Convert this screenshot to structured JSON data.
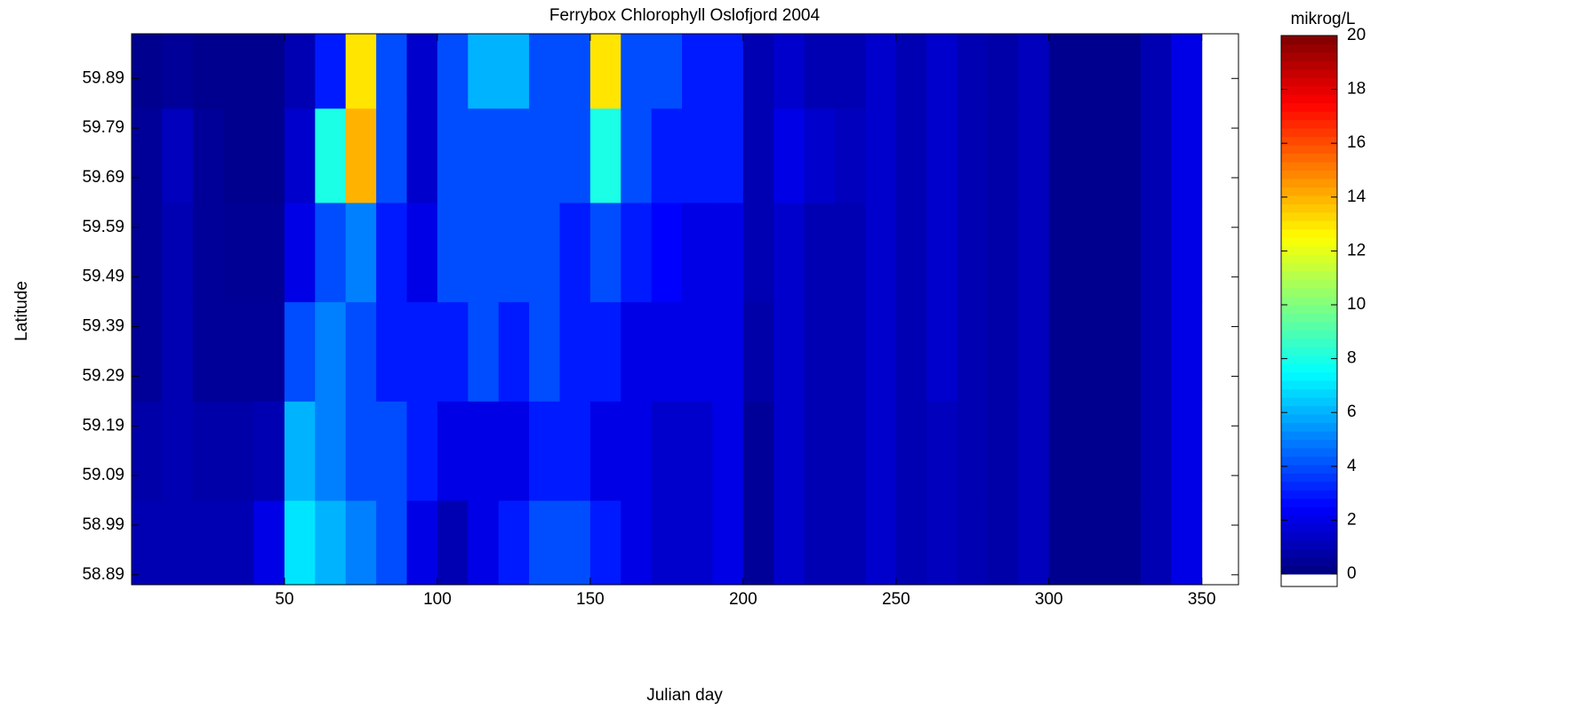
{
  "chart_data": {
    "type": "heatmap",
    "title": "Ferrybox Chlorophyll Oslofjord 2004",
    "x_label": "Julian day",
    "y_label": "Latitude",
    "colorbar_label": "mikrog/L",
    "x": [
      5,
      15,
      25,
      35,
      45,
      55,
      65,
      75,
      85,
      95,
      105,
      115,
      125,
      135,
      145,
      155,
      165,
      175,
      185,
      195,
      205,
      215,
      225,
      235,
      245,
      255,
      265,
      275,
      285,
      295,
      305,
      315,
      325,
      335,
      345
    ],
    "y": [
      58.94,
      59.14,
      59.34,
      59.54,
      59.74,
      59.92
    ],
    "z": [
      [
        1,
        1,
        1,
        1,
        2,
        7,
        6,
        5,
        4,
        2,
        1,
        2,
        3,
        4,
        4,
        3,
        2,
        1.5,
        1.5,
        2,
        0.5,
        1.5,
        1,
        1,
        1.5,
        1,
        1.2,
        1,
        0.8,
        1.2,
        0.3,
        0.3,
        0.3,
        1,
        2
      ],
      [
        0.8,
        1,
        0.8,
        0.8,
        1,
        6,
        5,
        4,
        4,
        3,
        2,
        2,
        2,
        3,
        3,
        2,
        2,
        1.5,
        1.5,
        2,
        0.5,
        1.5,
        1,
        1,
        1.5,
        1,
        1.2,
        1,
        0.8,
        1.2,
        0.3,
        0.3,
        0.3,
        1,
        2
      ],
      [
        0.5,
        1,
        0.5,
        0.5,
        0.5,
        4,
        5,
        4,
        3,
        3,
        3,
        4,
        3,
        4,
        3,
        3,
        2,
        2,
        2,
        2,
        0.8,
        1.5,
        1,
        1,
        1.5,
        1,
        1.5,
        1,
        0.8,
        1.2,
        0.3,
        0.3,
        0.3,
        1,
        2
      ],
      [
        0.5,
        1,
        0.5,
        0.4,
        0.4,
        2,
        4,
        5,
        3,
        2,
        4,
        4,
        4,
        4,
        3,
        4,
        3,
        2.5,
        2,
        2,
        1,
        1.5,
        1,
        1,
        1.5,
        1,
        1.5,
        1,
        0.8,
        1.2,
        0.3,
        0.3,
        0.3,
        1,
        2
      ],
      [
        0.5,
        1.2,
        0.5,
        0.3,
        0.3,
        1.5,
        8,
        14,
        4,
        1.5,
        4,
        4,
        4,
        4,
        4,
        8,
        4,
        3,
        3,
        3,
        1,
        2,
        1.5,
        1.2,
        1.5,
        1,
        1.5,
        1,
        0.8,
        1.2,
        0.3,
        0.3,
        0.3,
        1,
        2
      ],
      [
        0.3,
        0.5,
        0.3,
        0.3,
        0.3,
        1,
        3,
        13,
        4,
        1.5,
        4,
        6,
        6,
        4,
        4,
        13,
        4,
        4,
        3,
        3,
        1,
        1.5,
        1,
        1,
        1.5,
        1,
        1.5,
        1,
        0.8,
        1.2,
        0.3,
        0.3,
        0.3,
        1,
        2
      ]
    ],
    "xlim": [
      0,
      362
    ],
    "xticks": [
      50,
      100,
      150,
      200,
      250,
      300,
      350
    ],
    "ylim": [
      58.87,
      59.98
    ],
    "yticks": [
      58.89,
      58.99,
      59.09,
      59.19,
      59.29,
      59.39,
      59.49,
      59.59,
      59.69,
      59.79,
      59.89
    ],
    "clim": [
      0,
      20
    ],
    "cticks": [
      0,
      2,
      4,
      6,
      8,
      10,
      12,
      14,
      16,
      18,
      20
    ],
    "colormap": "jet"
  }
}
